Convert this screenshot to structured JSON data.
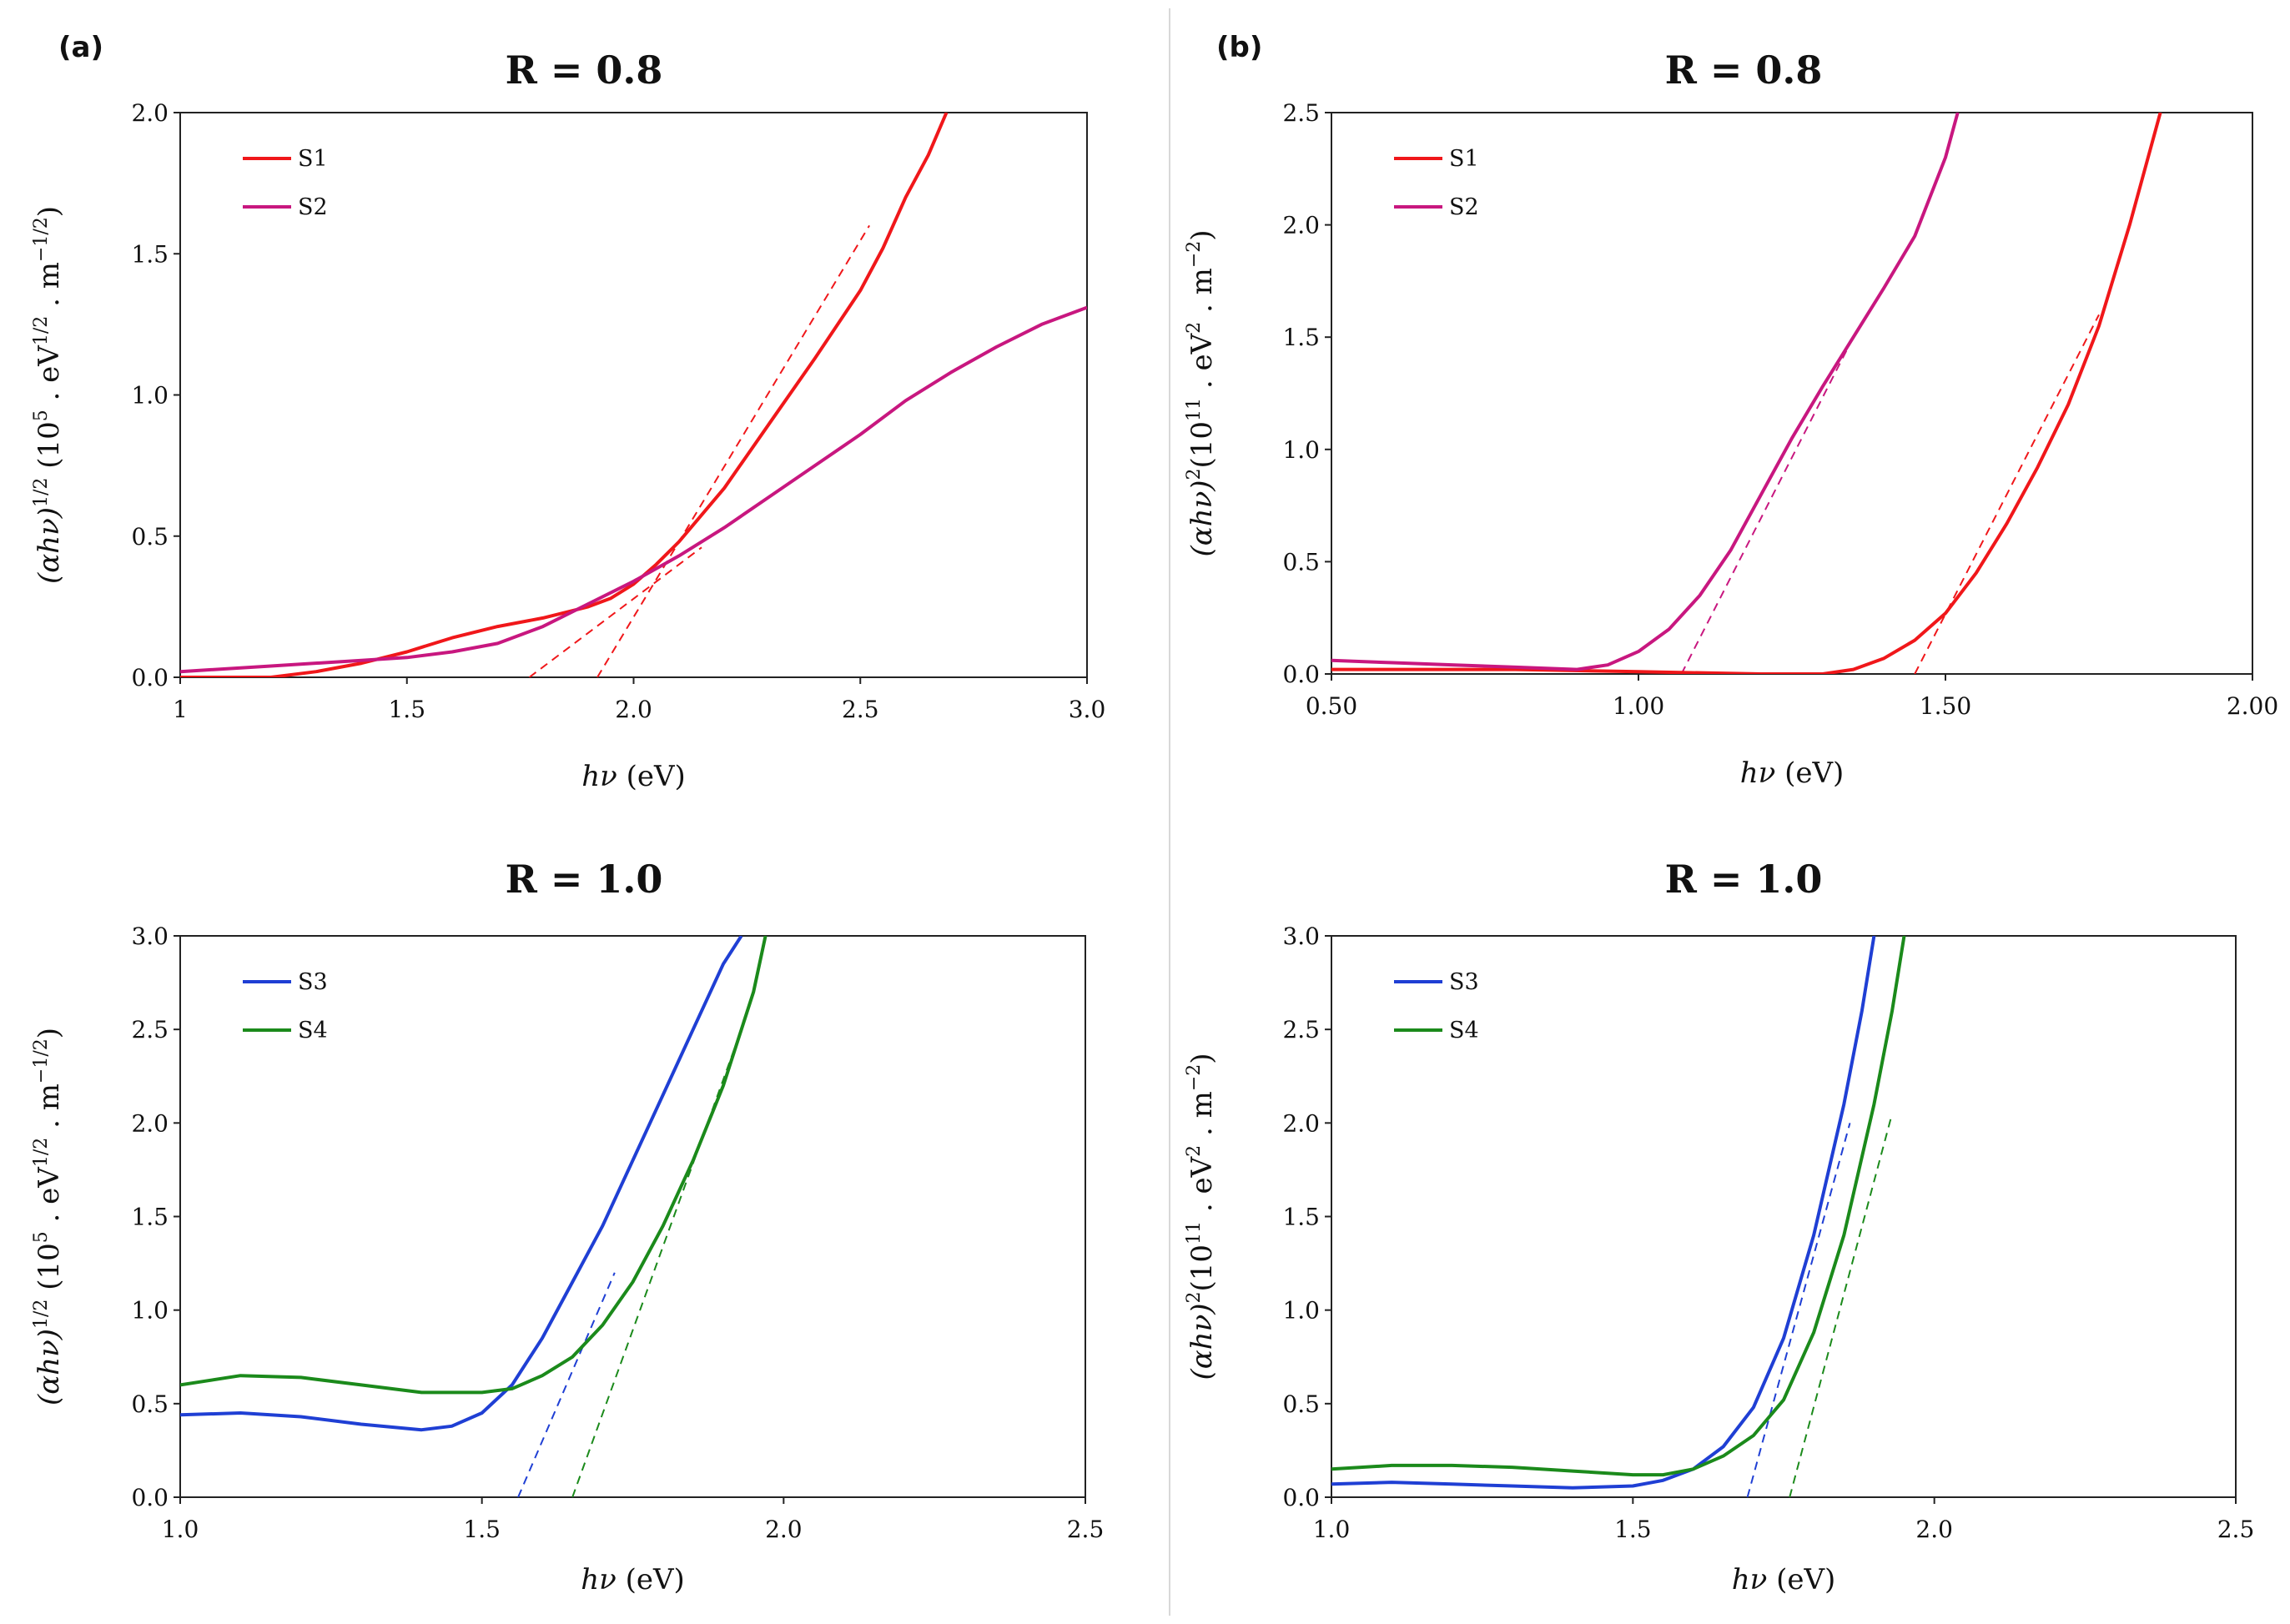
{
  "panels": [
    {
      "letter": "(a)"
    },
    {
      "letter": "(b)"
    }
  ],
  "chart_data": [
    {
      "type": "line",
      "panel": "(a)",
      "title": "R = 0.8",
      "xlabel": "hν (eV)",
      "ylabel": "(αhν)^1/2 (10^5 . eV^1/2 . m^-1/2)",
      "xlabel_parts": {
        "italic": "hν",
        "rest": " (eV)"
      },
      "ylabel_parts": {
        "pre": "(αhν)",
        "exp": "1/2",
        "mid": " (10",
        "exp2": "5",
        "post1": " . eV",
        "exp3": "1/2",
        "post2": " . m",
        "exp4": "−1/2",
        "end": ")"
      },
      "xlim": [
        1,
        3.0
      ],
      "ylim": [
        0,
        2.0
      ],
      "xticks": [
        1,
        1.5,
        2.0,
        2.5,
        3.0
      ],
      "xtick_labels": [
        "1",
        "1.5",
        "2.0",
        "2.5",
        "3.0"
      ],
      "yticks": [
        0,
        0.5,
        1.0,
        1.5,
        2.0
      ],
      "ytick_labels": [
        "0.0",
        "0.5",
        "1.0",
        "1.5",
        "2.0"
      ],
      "legend": "top-left",
      "series": [
        {
          "name": "S1",
          "color": "#f0171a",
          "x": [
            1.0,
            1.2,
            1.3,
            1.4,
            1.5,
            1.6,
            1.7,
            1.8,
            1.9,
            1.95,
            2.0,
            2.05,
            2.1,
            2.2,
            2.3,
            2.4,
            2.5,
            2.55,
            2.6,
            2.65,
            2.69
          ],
          "y": [
            0.0,
            0.0,
            0.02,
            0.05,
            0.09,
            0.14,
            0.18,
            0.21,
            0.25,
            0.28,
            0.33,
            0.4,
            0.48,
            0.67,
            0.9,
            1.13,
            1.37,
            1.52,
            1.7,
            1.85,
            2.0
          ]
        },
        {
          "name": "S2",
          "color": "#c8177f",
          "x": [
            1.0,
            1.2,
            1.4,
            1.5,
            1.6,
            1.7,
            1.8,
            1.9,
            2.0,
            2.1,
            2.2,
            2.3,
            2.4,
            2.5,
            2.6,
            2.7,
            2.8,
            2.9,
            3.0
          ],
          "y": [
            0.02,
            0.04,
            0.06,
            0.07,
            0.09,
            0.12,
            0.18,
            0.26,
            0.34,
            0.43,
            0.53,
            0.64,
            0.75,
            0.86,
            0.98,
            1.08,
            1.17,
            1.25,
            1.31
          ]
        }
      ],
      "fit_lines": [
        {
          "series": "S1",
          "color": "#f0171a",
          "x": [
            1.92,
            2.52
          ],
          "y": [
            0.0,
            1.6
          ]
        },
        {
          "series": "S2",
          "color": "#f0171a",
          "x": [
            1.77,
            2.15
          ],
          "y": [
            0.0,
            0.46
          ]
        }
      ]
    },
    {
      "type": "line",
      "panel": "(b)",
      "title": "R = 0.8",
      "xlabel": "hν (eV)",
      "ylabel": "(αhν)^2 (10^11 . eV^2 . m^-2)",
      "xlabel_parts": {
        "italic": "hν",
        "rest": " (eV)"
      },
      "ylabel_parts": {
        "pre": "(αhν)",
        "exp": "2",
        "mid": "(10",
        "exp2": "11",
        "post1": " . eV",
        "exp3": "2",
        "post2": " . m",
        "exp4": "−2",
        "end": ")"
      },
      "xlim": [
        0.5,
        2.0
      ],
      "ylim": [
        0,
        2.5
      ],
      "xticks": [
        0.5,
        1.0,
        1.5,
        2.0
      ],
      "xtick_labels": [
        "0.50",
        "1.00",
        "1.50",
        "2.00"
      ],
      "yticks": [
        0,
        0.5,
        1.0,
        1.5,
        2.0,
        2.5
      ],
      "ytick_labels": [
        "0.0",
        "0.5",
        "1.0",
        "1.5",
        "2.0",
        "2.5"
      ],
      "legend": "top-left",
      "series": [
        {
          "name": "S1",
          "color": "#f0171a",
          "x": [
            0.5,
            0.6,
            0.8,
            1.0,
            1.2,
            1.3,
            1.35,
            1.4,
            1.45,
            1.5,
            1.55,
            1.6,
            1.65,
            1.7,
            1.75,
            1.8,
            1.85
          ],
          "y": [
            0.02,
            0.02,
            0.02,
            0.01,
            0.0,
            0.0,
            0.02,
            0.07,
            0.15,
            0.27,
            0.45,
            0.67,
            0.92,
            1.2,
            1.55,
            2.0,
            2.5
          ]
        },
        {
          "name": "S2",
          "color": "#c8177f",
          "x": [
            0.5,
            0.6,
            0.7,
            0.8,
            0.9,
            0.95,
            1.0,
            1.05,
            1.1,
            1.15,
            1.2,
            1.25,
            1.3,
            1.35,
            1.4,
            1.45,
            1.5,
            1.52
          ],
          "y": [
            0.06,
            0.05,
            0.04,
            0.03,
            0.02,
            0.04,
            0.1,
            0.2,
            0.35,
            0.55,
            0.8,
            1.05,
            1.28,
            1.5,
            1.72,
            1.95,
            2.3,
            2.5
          ]
        }
      ],
      "fit_lines": [
        {
          "series": "S1",
          "color": "#f0171a",
          "x": [
            1.45,
            1.75
          ],
          "y": [
            0.0,
            1.6
          ]
        },
        {
          "series": "S2",
          "color": "#c8177f",
          "x": [
            1.07,
            1.35
          ],
          "y": [
            0.0,
            1.5
          ]
        }
      ]
    },
    {
      "type": "line",
      "panel": "(a)",
      "title": "R = 1.0",
      "xlabel": "hν (eV)",
      "ylabel": "(αhν)^1/2 (10^5 . eV^1/2 . m^-1/2)",
      "xlabel_parts": {
        "italic": "hν",
        "rest": " (eV)"
      },
      "ylabel_parts": {
        "pre": "(αhν)",
        "exp": "1/2",
        "mid": " (10",
        "exp2": "5",
        "post1": " . eV",
        "exp3": "1/2",
        "post2": " . m",
        "exp4": "−1/2",
        "end": ")"
      },
      "xlim": [
        1.0,
        2.5
      ],
      "ylim": [
        0,
        3.0
      ],
      "xticks": [
        1.0,
        1.5,
        2.0,
        2.5
      ],
      "xtick_labels": [
        "1.0",
        "1.5",
        "2.0",
        "2.5"
      ],
      "yticks": [
        0,
        0.5,
        1.0,
        1.5,
        2.0,
        2.5,
        3.0
      ],
      "ytick_labels": [
        "0.0",
        "0.5",
        "1.0",
        "1.5",
        "2.0",
        "2.5",
        "3.0"
      ],
      "legend": "top-left",
      "series": [
        {
          "name": "S3",
          "color": "#1f3fd4",
          "x": [
            1.0,
            1.1,
            1.2,
            1.3,
            1.4,
            1.45,
            1.5,
            1.55,
            1.6,
            1.65,
            1.7,
            1.75,
            1.8,
            1.85,
            1.9,
            1.93
          ],
          "y": [
            0.44,
            0.45,
            0.43,
            0.39,
            0.36,
            0.38,
            0.45,
            0.6,
            0.85,
            1.15,
            1.45,
            1.8,
            2.15,
            2.5,
            2.85,
            3.0
          ]
        },
        {
          "name": "S4",
          "color": "#1b8a1b",
          "x": [
            1.0,
            1.1,
            1.2,
            1.3,
            1.4,
            1.5,
            1.55,
            1.6,
            1.65,
            1.7,
            1.75,
            1.8,
            1.85,
            1.9,
            1.95,
            1.97
          ],
          "y": [
            0.6,
            0.65,
            0.64,
            0.6,
            0.56,
            0.56,
            0.58,
            0.65,
            0.75,
            0.92,
            1.15,
            1.45,
            1.8,
            2.2,
            2.7,
            3.0
          ]
        }
      ],
      "fit_lines": [
        {
          "series": "S3",
          "color": "#1f3fd4",
          "x": [
            1.56,
            1.72
          ],
          "y": [
            0.0,
            1.2
          ]
        },
        {
          "series": "S4",
          "color": "#1b8a1b",
          "x": [
            1.65,
            1.93
          ],
          "y": [
            0.0,
            2.5
          ]
        }
      ]
    },
    {
      "type": "line",
      "panel": "(b)",
      "title": "R = 1.0",
      "xlabel": "hν (eV)",
      "ylabel": "(αhν)^2 (10^11 . eV^2 . m^-2)",
      "xlabel_parts": {
        "italic": "hν",
        "rest": " (eV)"
      },
      "ylabel_parts": {
        "pre": "(αhν)",
        "exp": "2",
        "mid": "(10",
        "exp2": "11",
        "post1": " . eV",
        "exp3": "2",
        "post2": " . m",
        "exp4": "−2",
        "end": ")"
      },
      "xlim": [
        1.0,
        2.5
      ],
      "ylim": [
        0,
        3.0
      ],
      "xticks": [
        1.0,
        1.5,
        2.0,
        2.5
      ],
      "xtick_labels": [
        "1.0",
        "1.5",
        "2.0",
        "2.5"
      ],
      "yticks": [
        0,
        0.5,
        1.0,
        1.5,
        2.0,
        2.5,
        3.0
      ],
      "ytick_labels": [
        "0.0",
        "0.5",
        "1.0",
        "1.5",
        "2.0",
        "2.5",
        "3.0"
      ],
      "legend": "top-left",
      "series": [
        {
          "name": "S3",
          "color": "#1f3fd4",
          "x": [
            1.0,
            1.1,
            1.2,
            1.3,
            1.4,
            1.5,
            1.55,
            1.6,
            1.65,
            1.7,
            1.75,
            1.8,
            1.85,
            1.88,
            1.9
          ],
          "y": [
            0.07,
            0.08,
            0.07,
            0.06,
            0.05,
            0.06,
            0.09,
            0.15,
            0.27,
            0.48,
            0.85,
            1.4,
            2.1,
            2.6,
            3.0
          ]
        },
        {
          "name": "S4",
          "color": "#1b8a1b",
          "x": [
            1.0,
            1.1,
            1.2,
            1.3,
            1.4,
            1.5,
            1.55,
            1.6,
            1.65,
            1.7,
            1.75,
            1.8,
            1.85,
            1.9,
            1.93,
            1.95
          ],
          "y": [
            0.15,
            0.17,
            0.17,
            0.16,
            0.14,
            0.12,
            0.12,
            0.15,
            0.22,
            0.33,
            0.52,
            0.88,
            1.4,
            2.1,
            2.6,
            3.0
          ]
        }
      ],
      "fit_lines": [
        {
          "series": "S3",
          "color": "#1f3fd4",
          "x": [
            1.69,
            1.86
          ],
          "y": [
            0.0,
            2.0
          ]
        },
        {
          "series": "S4",
          "color": "#1b8a1b",
          "x": [
            1.76,
            1.93
          ],
          "y": [
            0.0,
            2.05
          ]
        }
      ]
    }
  ]
}
